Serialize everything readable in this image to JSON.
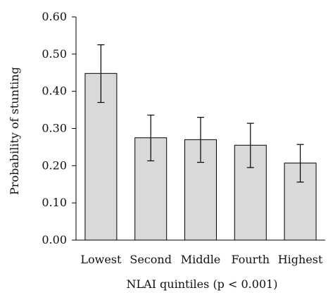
{
  "chart_data": {
    "type": "bar",
    "title": "",
    "xlabel": "NLAI quintiles (p < 0.001)",
    "ylabel": "Probability of stunting",
    "categories": [
      "Lowest",
      "Second",
      "Middle",
      "Fourth",
      "Highest"
    ],
    "values": [
      0.448,
      0.275,
      0.27,
      0.255,
      0.207
    ],
    "error_low": [
      0.37,
      0.213,
      0.209,
      0.195,
      0.156
    ],
    "error_high": [
      0.525,
      0.336,
      0.33,
      0.314,
      0.257
    ],
    "ylim": [
      0,
      0.6
    ],
    "yticks": [
      0.0,
      0.1,
      0.2,
      0.3,
      0.4,
      0.5,
      0.6
    ],
    "ytick_labels": [
      "0.00",
      "0.10",
      "0.20",
      "0.30",
      "0.40",
      "0.50",
      "0.60"
    ],
    "grid": false,
    "legend": "none",
    "colors": {
      "bar_fill": "#d9d9d9",
      "bar_stroke": "#000000",
      "axis": "#000000",
      "error_bar": "#000000"
    }
  }
}
